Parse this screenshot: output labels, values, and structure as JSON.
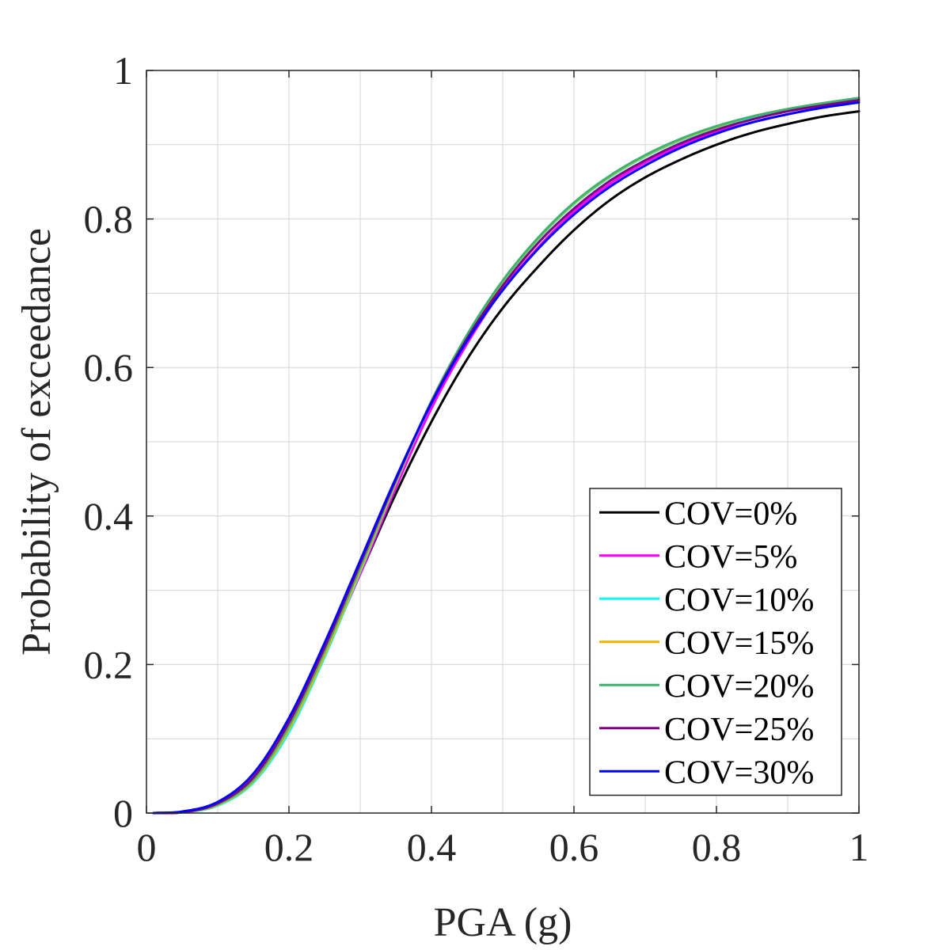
{
  "chart_data": {
    "type": "line",
    "title": "",
    "xlabel": "PGA (g)",
    "ylabel": "Probability of exceedance",
    "xlim": [
      0,
      1
    ],
    "ylim": [
      0,
      1
    ],
    "grid": true,
    "minor_grid": true,
    "legend_position": "bottom-right",
    "x_ticks": [
      0,
      0.2,
      0.4,
      0.6,
      0.8,
      1
    ],
    "x_tick_labels": [
      "0",
      "0.2",
      "0.4",
      "0.6",
      "0.8",
      "1"
    ],
    "y_ticks": [
      0,
      0.2,
      0.4,
      0.6,
      0.8,
      1
    ],
    "y_tick_labels": [
      "0",
      "0.2",
      "0.4",
      "0.6",
      "0.8",
      "1"
    ],
    "x": [
      0.01,
      0.05,
      0.1,
      0.15,
      0.2,
      0.25,
      0.3,
      0.35,
      0.4,
      0.45,
      0.5,
      0.55,
      0.6,
      0.65,
      0.7,
      0.75,
      0.8,
      0.85,
      0.9,
      0.95,
      1.0
    ],
    "series": [
      {
        "name": "COV=0%",
        "color": "#000000",
        "values": [
          0,
          0.001,
          0.012,
          0.045,
          0.118,
          0.215,
          0.322,
          0.43,
          0.527,
          0.611,
          0.68,
          0.736,
          0.785,
          0.825,
          0.856,
          0.88,
          0.9,
          0.916,
          0.928,
          0.938,
          0.945
        ]
      },
      {
        "name": "COV=5%",
        "color": "#ff00ff",
        "values": [
          0,
          0.001,
          0.011,
          0.044,
          0.116,
          0.214,
          0.322,
          0.438,
          0.545,
          0.632,
          0.705,
          0.762,
          0.81,
          0.847,
          0.876,
          0.899,
          0.917,
          0.93,
          0.941,
          0.95,
          0.957
        ]
      },
      {
        "name": "COV=10%",
        "color": "#00ffff",
        "values": [
          0,
          0.001,
          0.01,
          0.041,
          0.109,
          0.21,
          0.325,
          0.444,
          0.553,
          0.642,
          0.715,
          0.773,
          0.82,
          0.856,
          0.884,
          0.906,
          0.923,
          0.937,
          0.947,
          0.955,
          0.962
        ]
      },
      {
        "name": "COV=15%",
        "color": "#f0b400",
        "values": [
          0,
          0.001,
          0.011,
          0.043,
          0.113,
          0.213,
          0.327,
          0.445,
          0.554,
          0.643,
          0.716,
          0.774,
          0.821,
          0.857,
          0.885,
          0.907,
          0.924,
          0.938,
          0.948,
          0.956,
          0.962
        ]
      },
      {
        "name": "COV=20%",
        "color": "#3cb371",
        "values": [
          0,
          0.001,
          0.012,
          0.045,
          0.117,
          0.218,
          0.331,
          0.447,
          0.555,
          0.644,
          0.717,
          0.775,
          0.822,
          0.858,
          0.886,
          0.908,
          0.925,
          0.938,
          0.948,
          0.956,
          0.963
        ]
      },
      {
        "name": "COV=25%",
        "color": "#800080",
        "values": [
          0,
          0.001,
          0.013,
          0.048,
          0.122,
          0.223,
          0.336,
          0.449,
          0.553,
          0.639,
          0.71,
          0.768,
          0.814,
          0.851,
          0.879,
          0.902,
          0.92,
          0.934,
          0.945,
          0.953,
          0.96
        ]
      },
      {
        "name": "COV=30%",
        "color": "#0000ff",
        "values": [
          0,
          0.002,
          0.015,
          0.053,
          0.128,
          0.229,
          0.34,
          0.451,
          0.552,
          0.636,
          0.704,
          0.76,
          0.806,
          0.843,
          0.872,
          0.896,
          0.915,
          0.93,
          0.941,
          0.95,
          0.957
        ]
      }
    ]
  }
}
